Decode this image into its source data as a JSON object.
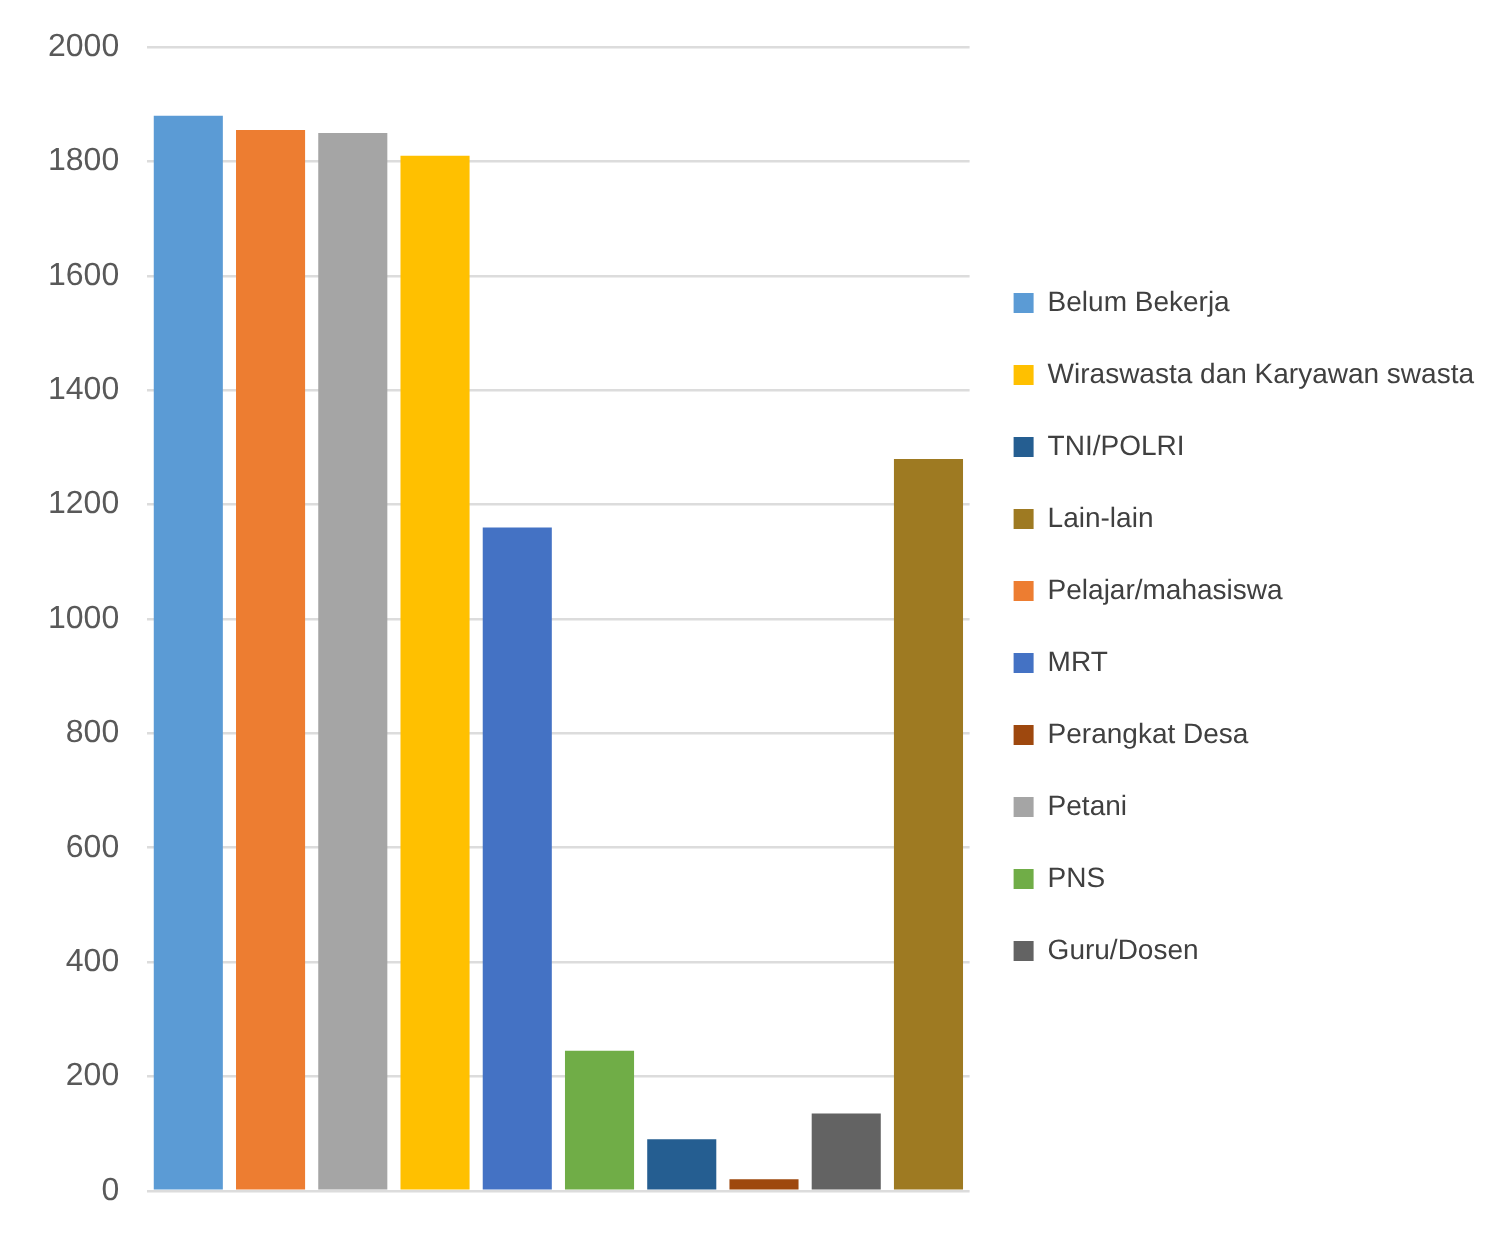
{
  "chart_data": {
    "type": "bar",
    "categories": [
      null,
      null,
      null,
      null,
      null,
      null,
      null,
      null,
      null,
      null
    ],
    "series": [
      {
        "name": "Belum Bekerja",
        "color": "#5b9bd5",
        "values": [
          1880,
          null,
          null,
          null,
          null,
          null,
          null,
          null,
          null,
          null
        ]
      },
      {
        "name": "Wiraswasta dan Karyawan swasta",
        "color": "#ffc000",
        "values": [
          null,
          null,
          null,
          1810,
          null,
          null,
          null,
          null,
          null,
          null
        ]
      },
      {
        "name": "TNI/POLRI",
        "color": "#255e91",
        "values": [
          null,
          null,
          null,
          null,
          null,
          null,
          90,
          null,
          null,
          null
        ]
      },
      {
        "name": "Lain-lain",
        "color": "#9e7a22",
        "values": [
          null,
          null,
          null,
          null,
          null,
          null,
          null,
          null,
          null,
          1280
        ]
      },
      {
        "name": "Pelajar/mahasiswa",
        "color": "#ed7d31",
        "values": [
          null,
          1855,
          null,
          null,
          null,
          null,
          null,
          null,
          null,
          null
        ]
      },
      {
        "name": "MRT",
        "color": "#4472c4",
        "values": [
          null,
          null,
          null,
          null,
          1160,
          null,
          null,
          null,
          null,
          null
        ]
      },
      {
        "name": "Perangkat Desa",
        "color": "#9e480e",
        "values": [
          null,
          null,
          null,
          null,
          null,
          null,
          null,
          20,
          null,
          null
        ]
      },
      {
        "name": "Petani",
        "color": "#a5a5a5",
        "values": [
          null,
          null,
          1850,
          null,
          null,
          null,
          null,
          null,
          null,
          null
        ]
      },
      {
        "name": "PNS",
        "color": "#70ad47",
        "values": [
          null,
          null,
          null,
          null,
          null,
          245,
          null,
          null,
          null,
          null
        ]
      },
      {
        "name": "Guru/Dosen",
        "color": "#636363",
        "values": [
          null,
          null,
          null,
          null,
          null,
          null,
          null,
          null,
          135,
          null
        ]
      }
    ],
    "ylim": [
      0,
      2000
    ],
    "yticks": [
      0,
      200,
      400,
      600,
      800,
      1000,
      1200,
      1400,
      1600,
      1800,
      2000
    ],
    "grid": "y",
    "legend": "right"
  }
}
